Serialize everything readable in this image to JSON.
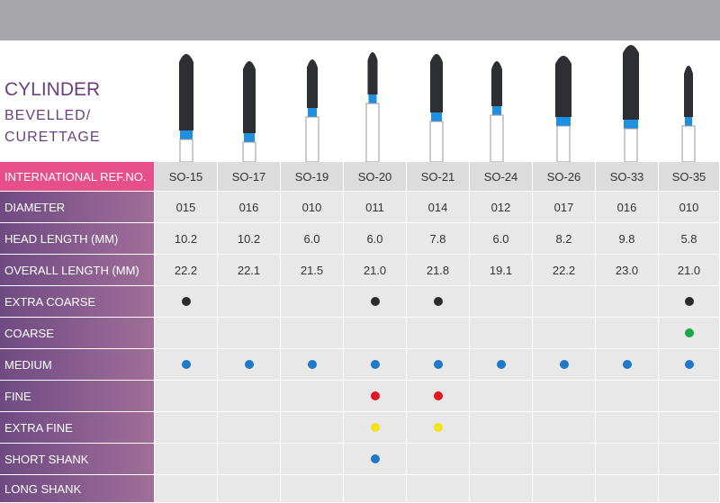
{
  "header": {
    "title": "CYLINDER",
    "subtitle_1": "BEVELLED/",
    "subtitle_2": "CURETTAGE"
  },
  "table": {
    "ref_label": "INTERNATIONAL REF.NO.",
    "refs": [
      "SO-15",
      "SO-17",
      "SO-19",
      "SO-20",
      "SO-21",
      "SO-24",
      "SO-26",
      "SO-33",
      "SO-35"
    ],
    "rows": [
      {
        "label": "DIAMETER",
        "cells": [
          "015",
          "016",
          "010",
          "011",
          "014",
          "012",
          "017",
          "016",
          "010"
        ]
      },
      {
        "label": "HEAD LENGTH (MM)",
        "cells": [
          "10.2",
          "10.2",
          "6.0",
          "6.0",
          "7.8",
          "6.0",
          "8.2",
          "9.8",
          "5.8"
        ]
      },
      {
        "label": "OVERALL LENGTH (MM)",
        "cells": [
          "22.2",
          "22.1",
          "21.5",
          "21.0",
          "21.8",
          "19.1",
          "22.2",
          "23.0",
          "21.0"
        ]
      }
    ],
    "grades": [
      {
        "label": "EXTRA COARSE",
        "color": "#2b2b2b",
        "marks": [
          true,
          false,
          false,
          true,
          true,
          false,
          false,
          false,
          true
        ]
      },
      {
        "label": "COARSE",
        "color": "#1aa64a",
        "marks": [
          false,
          false,
          false,
          false,
          false,
          false,
          false,
          false,
          true
        ]
      },
      {
        "label": "MEDIUM",
        "color": "#1f78c8",
        "marks": [
          true,
          true,
          true,
          true,
          true,
          true,
          true,
          true,
          true
        ]
      },
      {
        "label": "FINE",
        "color": "#e3161f",
        "marks": [
          false,
          false,
          false,
          true,
          true,
          false,
          false,
          false,
          false
        ]
      },
      {
        "label": "EXTRA FINE",
        "color": "#f3e21c",
        "marks": [
          false,
          false,
          false,
          true,
          true,
          false,
          false,
          false,
          false
        ]
      },
      {
        "label": "SHORT SHANK",
        "color": "#1f78c8",
        "marks": [
          false,
          false,
          false,
          true,
          false,
          false,
          false,
          false,
          false
        ]
      },
      {
        "label": "LONG SHANK",
        "color": "#1f78c8",
        "marks": [
          false,
          false,
          false,
          false,
          false,
          false,
          false,
          false,
          false
        ]
      }
    ]
  }
}
